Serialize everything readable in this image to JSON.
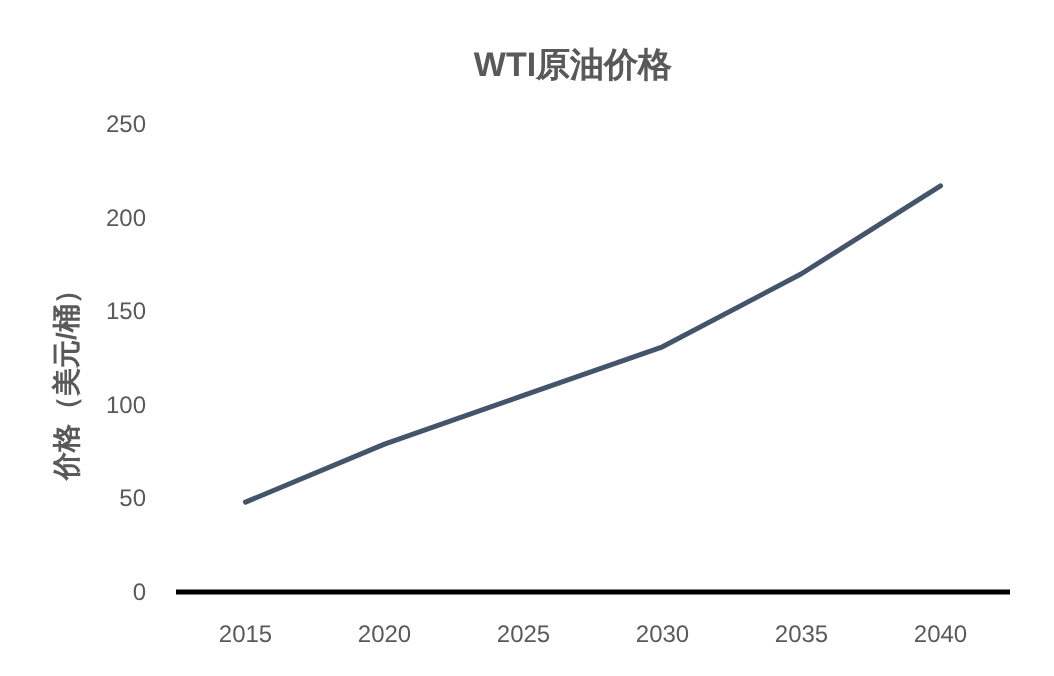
{
  "chart_data": {
    "type": "line",
    "title": "WTI原油价格",
    "ylabel": "价格（美元/桶）",
    "categories": [
      "2015",
      "2020",
      "2025",
      "2030",
      "2035",
      "2040"
    ],
    "series": [
      {
        "color": "#44546a",
        "values": [
          48,
          79,
          105,
          131,
          170,
          217
        ]
      }
    ],
    "ylim": [
      0,
      250
    ],
    "yticks": [
      0,
      50,
      100,
      150,
      200,
      250
    ],
    "grid": false,
    "marker": "none",
    "line_style": "solid"
  }
}
